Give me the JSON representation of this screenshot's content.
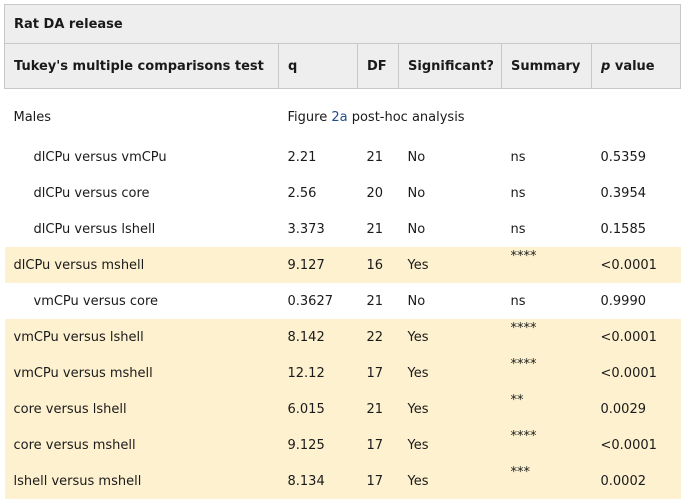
{
  "caption": "Rat DA release",
  "headers": {
    "test": "Tukey's multiple comparisons test",
    "q": "q",
    "df": "DF",
    "significant": "Significant?",
    "summary": "Summary",
    "p_prefix": "p",
    "p_suffix": " value"
  },
  "section": {
    "label": "Males",
    "note_prefix": "Figure ",
    "note_link": "2a",
    "note_suffix": " post-hoc analysis"
  },
  "rows": [
    {
      "comparison": "dlCPu versus vmCPu",
      "q": "2.21",
      "df": "21",
      "significant": "No",
      "summary": "ns",
      "p": "0.5359",
      "highlight": false
    },
    {
      "comparison": "dlCPu versus core",
      "q": "2.56",
      "df": "20",
      "significant": "No",
      "summary": "ns",
      "p": "0.3954",
      "highlight": false
    },
    {
      "comparison": "dlCPu versus lshell",
      "q": "3.373",
      "df": "21",
      "significant": "No",
      "summary": "ns",
      "p": "0.1585",
      "highlight": false
    },
    {
      "comparison": "dlCPu versus mshell",
      "q": "9.127",
      "df": "16",
      "significant": "Yes",
      "summary": "****",
      "p": "<0.0001",
      "highlight": true
    },
    {
      "comparison": "vmCPu versus core",
      "q": "0.3627",
      "df": "21",
      "significant": "No",
      "summary": "ns",
      "p": "0.9990",
      "highlight": false
    },
    {
      "comparison": "vmCPu versus lshell",
      "q": "8.142",
      "df": "22",
      "significant": "Yes",
      "summary": "****",
      "p": "<0.0001",
      "highlight": true
    },
    {
      "comparison": "vmCPu versus mshell",
      "q": "12.12",
      "df": "17",
      "significant": "Yes",
      "summary": "****",
      "p": "<0.0001",
      "highlight": true
    },
    {
      "comparison": "core versus lshell",
      "q": "6.015",
      "df": "21",
      "significant": "Yes",
      "summary": "**",
      "p": "0.0029",
      "highlight": true
    },
    {
      "comparison": "core versus mshell",
      "q": "9.125",
      "df": "17",
      "significant": "Yes",
      "summary": "****",
      "p": "<0.0001",
      "highlight": true
    },
    {
      "comparison": "lshell versus mshell",
      "q": "8.134",
      "df": "17",
      "significant": "Yes",
      "summary": "***",
      "p": "0.0002",
      "highlight": true
    }
  ],
  "colors": {
    "highlight": "#fdf1cf",
    "header_bg": "#eeeeee",
    "link": "#1f4e8c"
  }
}
